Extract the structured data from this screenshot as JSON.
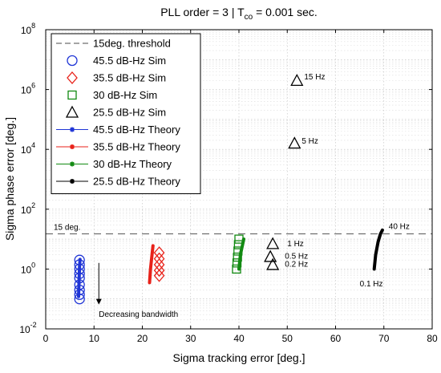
{
  "chart_data": {
    "type": "scatter",
    "title_prefix": "PLL order = 3  |  T",
    "title_sub": "co",
    "title_suffix": " = 0.001 sec.",
    "xlabel": "Sigma tracking error [deg.]",
    "ylabel": "Sigma phase error [deg.]",
    "xlim": [
      0,
      80
    ],
    "ylim_log10": [
      -2,
      8
    ],
    "y_scale": "log",
    "x_ticks": [
      "0",
      "10",
      "20",
      "30",
      "40",
      "50",
      "60",
      "70",
      "80"
    ],
    "y_ticks": [
      {
        "base": "10",
        "exp": "-2"
      },
      {
        "base": "10",
        "exp": "0"
      },
      {
        "base": "10",
        "exp": "2"
      },
      {
        "base": "10",
        "exp": "4"
      },
      {
        "base": "10",
        "exp": "6"
      },
      {
        "base": "10",
        "exp": "8"
      }
    ],
    "grid": true,
    "legend_position": "top-left",
    "threshold": {
      "y": 15,
      "label": "15 deg.",
      "legend": "15deg. threshold"
    },
    "series": [
      {
        "name": "45.5 dB-Hz Sim",
        "kind": "sim",
        "marker": "circle",
        "color": "#1f35d6",
        "points": [
          [
            7,
            0.1
          ],
          [
            7,
            0.14
          ],
          [
            7,
            0.2
          ],
          [
            7,
            0.3
          ],
          [
            7,
            0.5
          ],
          [
            7,
            0.7
          ],
          [
            7,
            1.0
          ],
          [
            7,
            1.4
          ],
          [
            7,
            2.0
          ]
        ]
      },
      {
        "name": "35.5 dB-Hz Sim",
        "kind": "sim",
        "marker": "diamond",
        "color": "#e8221a",
        "points": [
          [
            23.5,
            0.6
          ],
          [
            23.5,
            0.9
          ],
          [
            23.5,
            1.4
          ],
          [
            23.5,
            2.2
          ],
          [
            23.5,
            3.5
          ]
        ]
      },
      {
        "name": "30 dB-Hz Sim",
        "kind": "sim",
        "marker": "square",
        "color": "#128a12",
        "points": [
          [
            39.5,
            1.0
          ],
          [
            39.6,
            1.6
          ],
          [
            39.7,
            2.5
          ],
          [
            39.8,
            4.0
          ],
          [
            39.9,
            6.5
          ],
          [
            40,
            10
          ]
        ]
      },
      {
        "name": "25.5 dB-Hz Sim",
        "kind": "sim",
        "marker": "triangle",
        "color": "#000000",
        "points": [
          [
            52,
            2000000
          ],
          [
            51.5,
            16000
          ],
          [
            47,
            7
          ],
          [
            46.5,
            2.6
          ],
          [
            47,
            1.4
          ]
        ]
      },
      {
        "name": "45.5 dB-Hz Theory",
        "kind": "theory",
        "color": "#1f35d6",
        "points": [
          [
            6.8,
            0.12
          ],
          [
            6.9,
            0.4
          ],
          [
            7,
            1.2
          ],
          [
            7.1,
            2.1
          ]
        ]
      },
      {
        "name": "35.5 dB-Hz Theory",
        "kind": "theory",
        "color": "#e8221a",
        "points": [
          [
            21.5,
            0.35
          ],
          [
            21.7,
            1.0
          ],
          [
            22,
            3.0
          ],
          [
            22.2,
            6.0
          ]
        ]
      },
      {
        "name": "30 dB-Hz Theory",
        "kind": "theory",
        "color": "#128a12",
        "points": [
          [
            40,
            1.0
          ],
          [
            40.3,
            3.0
          ],
          [
            40.7,
            6.0
          ],
          [
            41,
            10
          ]
        ]
      },
      {
        "name": "25.5 dB-Hz Theory",
        "kind": "theory",
        "color": "#000000",
        "points": [
          [
            68,
            1.0
          ],
          [
            68.3,
            3.0
          ],
          [
            68.8,
            8.0
          ],
          [
            69.3,
            15
          ],
          [
            69.7,
            20
          ]
        ]
      }
    ],
    "annotations": [
      {
        "text": "15 Hz",
        "x": 53.5,
        "y": 2600000
      },
      {
        "text": "5 Hz",
        "x": 53,
        "y": 19000
      },
      {
        "text": "40 Hz",
        "x": 71,
        "y": 26
      },
      {
        "text": "1 Hz",
        "x": 50,
        "y": 7
      },
      {
        "text": "0.5 Hz",
        "x": 49.5,
        "y": 2.7
      },
      {
        "text": "0.2 Hz",
        "x": 49.5,
        "y": 1.45
      },
      {
        "text": "0.1 Hz",
        "x": 65,
        "y": 0.32
      },
      {
        "text": "Decreasing bandwidth",
        "x": 11,
        "y": 0.03
      }
    ],
    "arrow": {
      "x": 11,
      "y_from": 1.6,
      "y_to": 0.065
    }
  }
}
